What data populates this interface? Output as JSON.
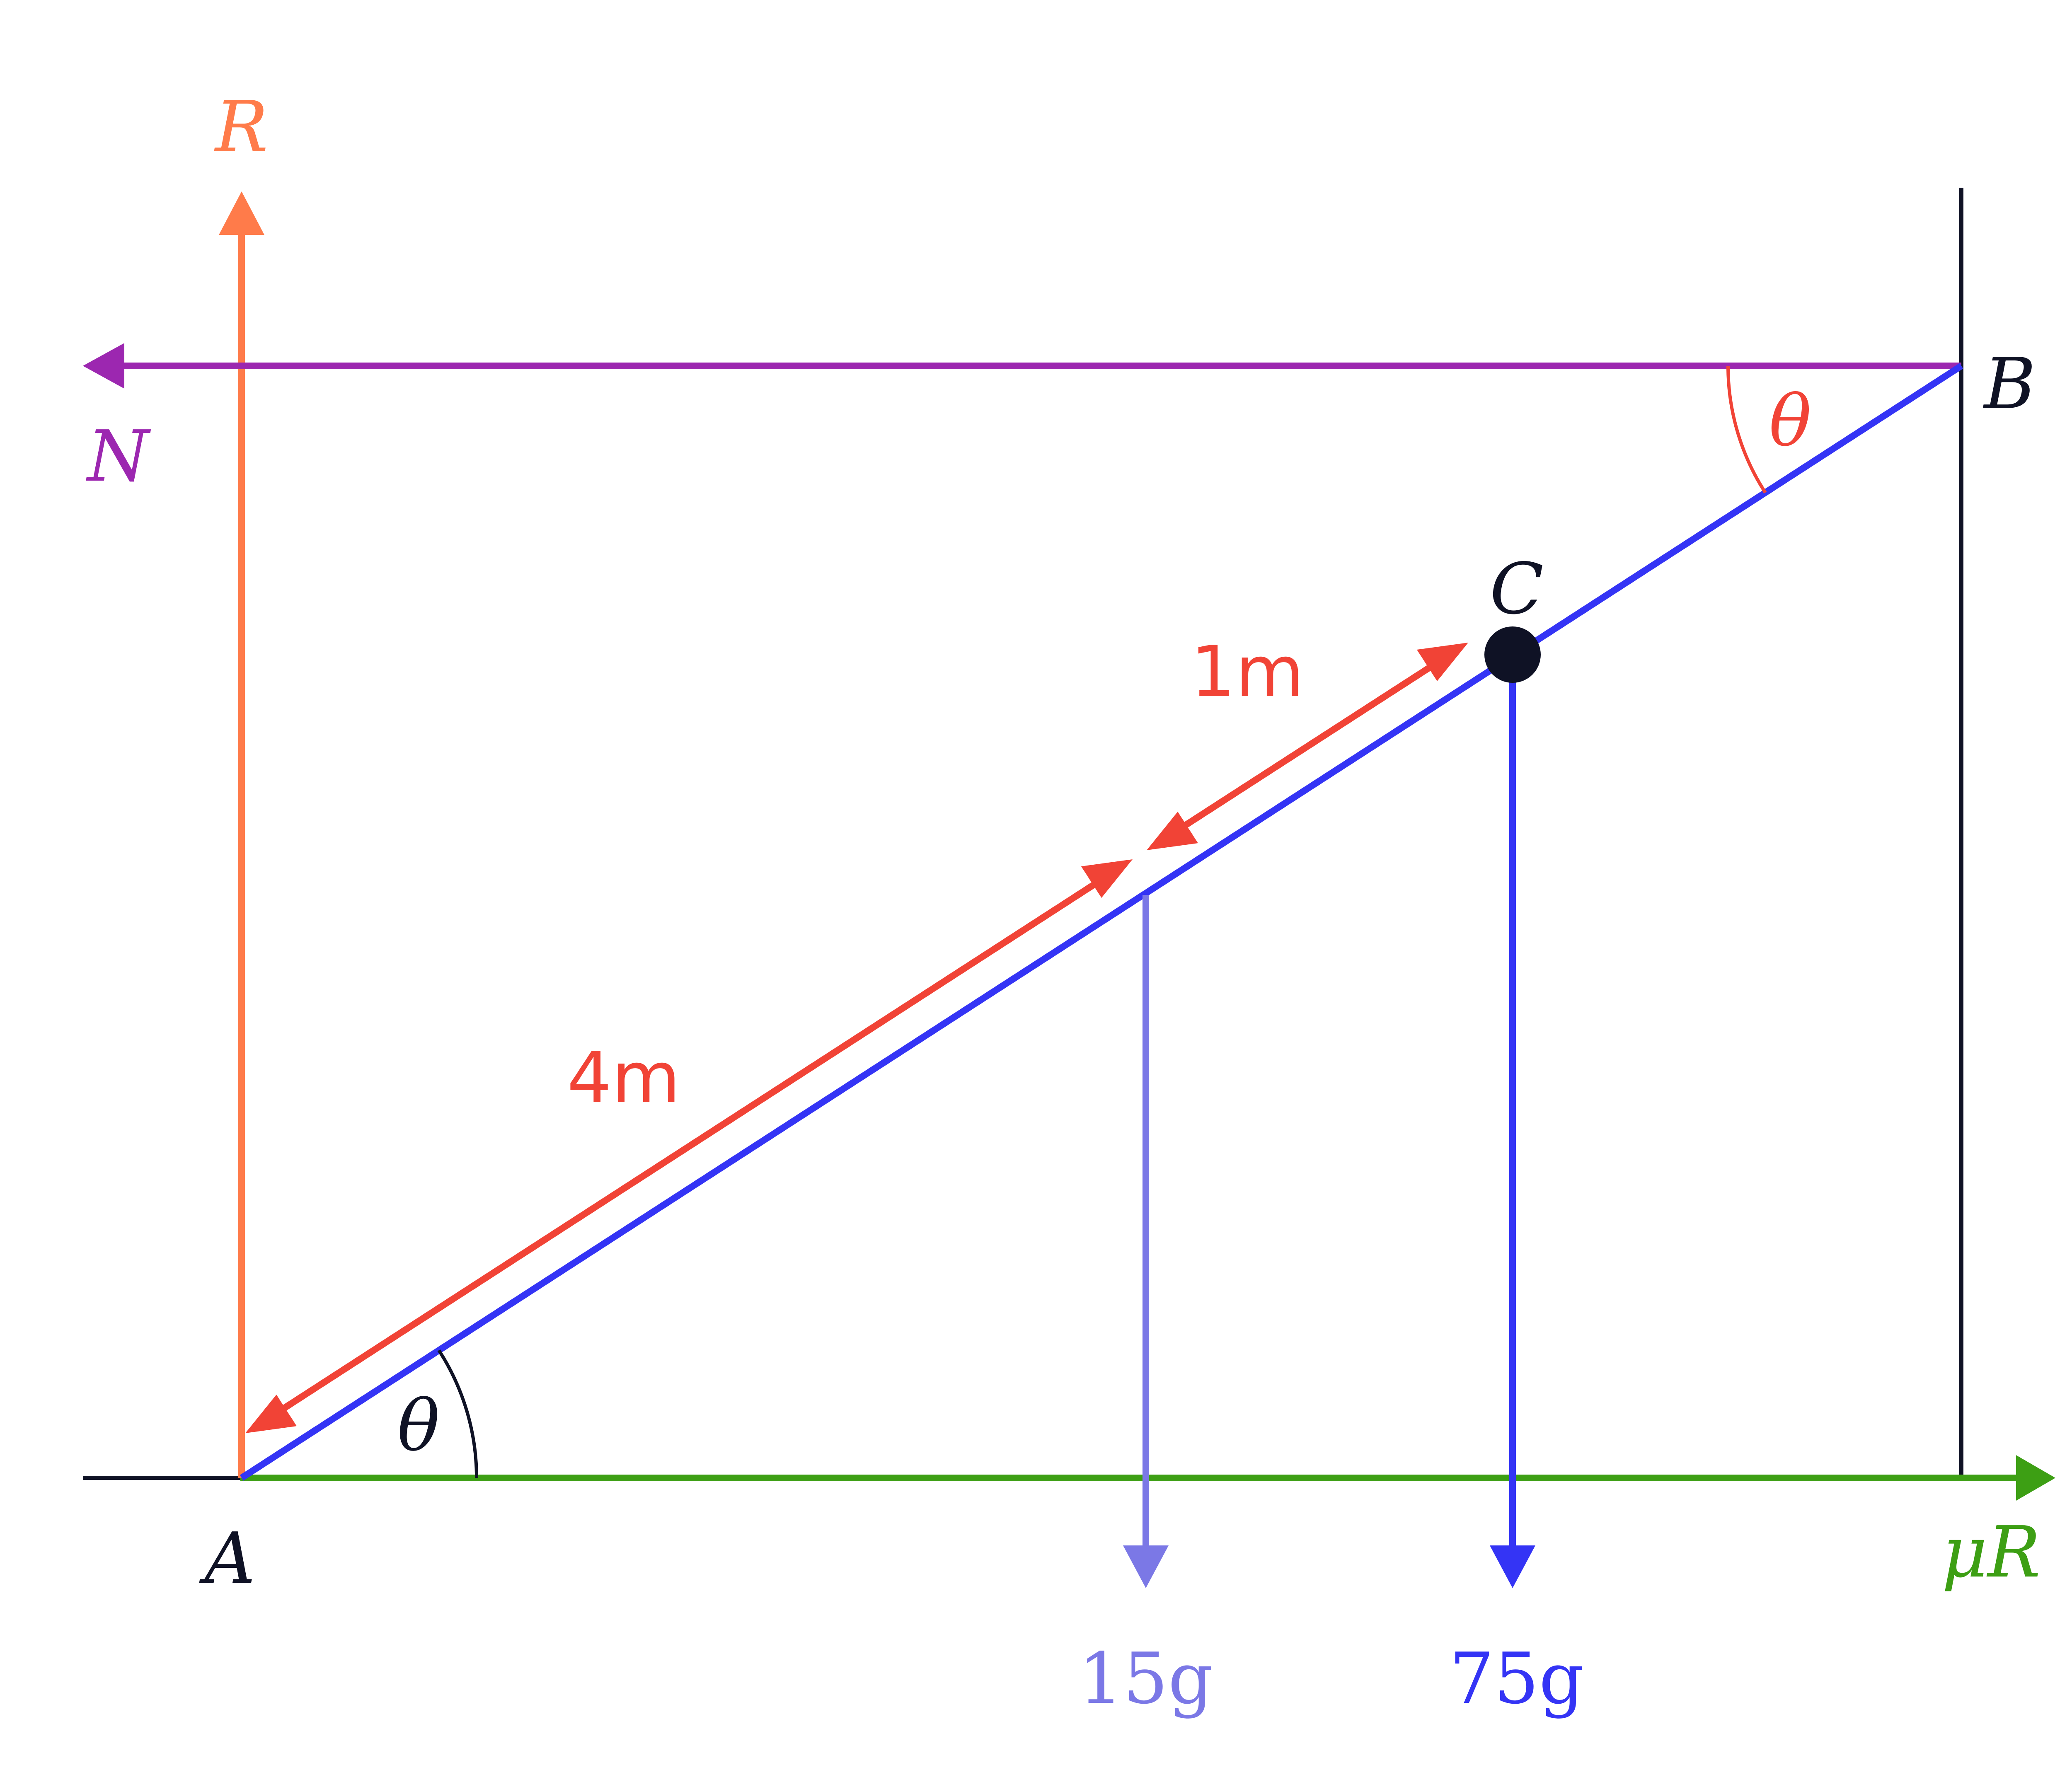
{
  "points": {
    "A": "A",
    "B": "B",
    "C": "C"
  },
  "forces": {
    "R": "R",
    "N": "N",
    "friction": "μR",
    "weight_rod": "15g",
    "weight_mass": "75g"
  },
  "angles": {
    "at_A": "θ",
    "at_B": "θ"
  },
  "lengths": {
    "lower": "4m",
    "upper": "1m"
  },
  "colors": {
    "R": "#ff7b4a",
    "N": "#9c27b0",
    "friction": "#3d9f14",
    "ladder": "#3434f5",
    "weight_rod": "#7b78e6",
    "weight_mass": "#3434f5",
    "dimension": "#f14336",
    "ink": "#0f1225"
  }
}
